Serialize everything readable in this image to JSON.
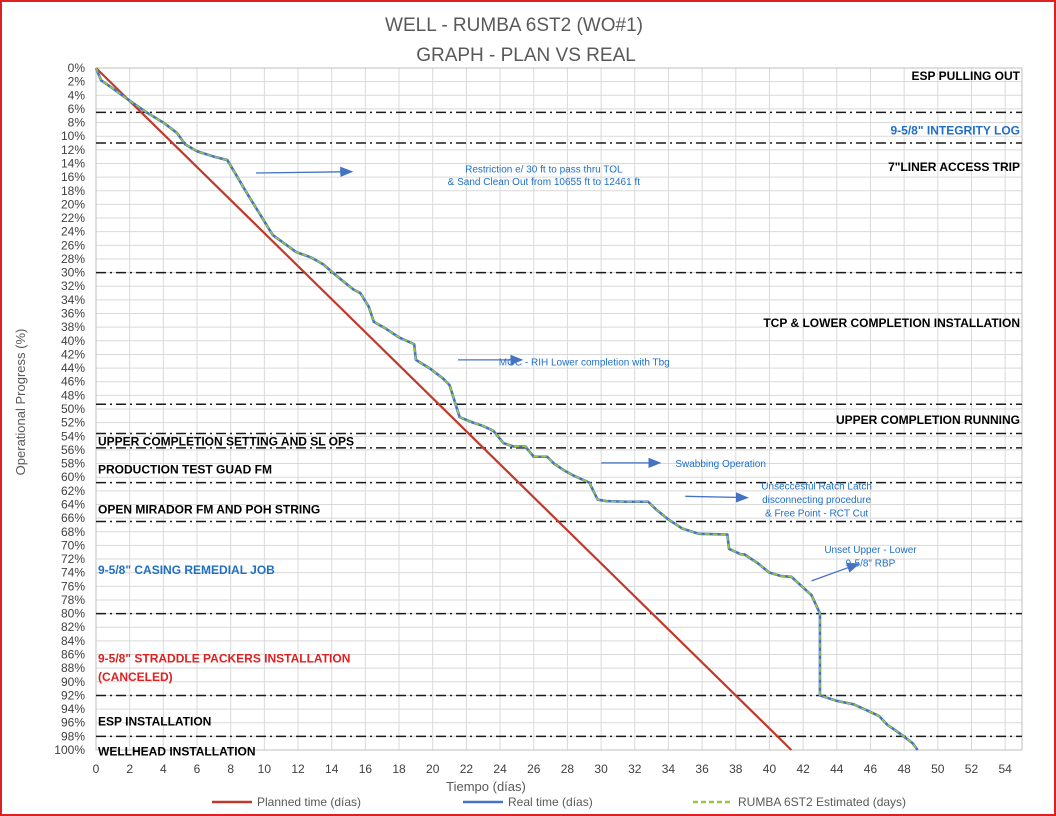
{
  "chart_data": {
    "type": "line",
    "title": [
      "WELL -  RUMBA 6ST2 (WO#1)",
      "GRAPH  - PLAN VS REAL"
    ],
    "xlabel": "Tiempo (días)",
    "ylabel": "Operational Progress (%)",
    "xlim": [
      0,
      55
    ],
    "ylim": [
      0,
      100
    ],
    "y_inverted": true,
    "x_ticks": [
      0,
      2,
      4,
      6,
      8,
      10,
      12,
      14,
      16,
      18,
      20,
      22,
      24,
      26,
      28,
      30,
      32,
      34,
      36,
      38,
      40,
      42,
      44,
      46,
      48,
      50,
      52,
      54
    ],
    "y_ticks": [
      0,
      2,
      4,
      6,
      8,
      10,
      12,
      14,
      16,
      18,
      20,
      22,
      24,
      26,
      28,
      30,
      32,
      34,
      36,
      38,
      40,
      42,
      44,
      46,
      48,
      50,
      52,
      54,
      56,
      58,
      60,
      62,
      64,
      66,
      68,
      70,
      72,
      74,
      76,
      78,
      80,
      82,
      84,
      86,
      88,
      90,
      92,
      94,
      96,
      98,
      100
    ],
    "grid": true,
    "legend_position": "bottom",
    "series": [
      {
        "name": "Planned time (días)",
        "color": "#c0392b",
        "style": "solid",
        "x": [
          0,
          41.3
        ],
        "y": [
          0,
          100
        ]
      },
      {
        "name": "Real time (días)",
        "color": "#4472c4",
        "style": "solid",
        "x": [
          0,
          0.3,
          1.0,
          2.0,
          3.0,
          4.0,
          4.8,
          5.3,
          6.0,
          7.0,
          7.8,
          9.0,
          10.5,
          11.9,
          12.8,
          13.5,
          14.3,
          14.8,
          15.3,
          15.7,
          16.2,
          16.5,
          17.2,
          18.0,
          18.9,
          19.0,
          19.8,
          20.6,
          21.0,
          21.6,
          22.4,
          23.0,
          23.6,
          24.2,
          24.8,
          25.5,
          26.0,
          26.8,
          27.2,
          27.8,
          28.4,
          29.3,
          29.8,
          30.3,
          31.5,
          32.8,
          33.3,
          34.0,
          34.8,
          35.8,
          37.5,
          37.6,
          38.3,
          38.5,
          39.3,
          40.0,
          40.7,
          41.3,
          42.5,
          43.0,
          43.0,
          44.0,
          45.0,
          45.8,
          46.5,
          47.0,
          47.7,
          48.5,
          48.8
        ],
        "y": [
          0,
          1.8,
          3.0,
          4.8,
          6.5,
          8.0,
          9.5,
          11.2,
          12.2,
          13.0,
          13.5,
          18.5,
          24.5,
          27.0,
          27.8,
          28.8,
          30.5,
          31.5,
          32.5,
          33.0,
          35.0,
          37.2,
          38.2,
          39.5,
          40.5,
          42.8,
          44.0,
          45.5,
          46.5,
          51.2,
          52.0,
          52.5,
          53.2,
          55.0,
          55.5,
          55.5,
          57.0,
          57.0,
          58.0,
          59.0,
          59.8,
          60.8,
          63.3,
          63.5,
          63.6,
          63.6,
          64.8,
          66.2,
          67.5,
          68.3,
          68.4,
          70.5,
          71.3,
          71.3,
          72.6,
          74.0,
          74.5,
          74.6,
          77.3,
          80.0,
          92.0,
          92.8,
          93.3,
          94.2,
          95.0,
          96.3,
          97.5,
          99.0,
          100
        ]
      },
      {
        "name": "RUMBA 6ST2 Estimated (days)",
        "color": "#9bc53d",
        "style": "dashed",
        "follows": "Real time (días)"
      }
    ],
    "phase_boundaries": [
      6.5,
      11,
      30,
      49.3,
      53.6,
      55.7,
      60.8,
      66.5,
      80,
      92,
      98
    ],
    "phases": [
      {
        "label": "ESP PULLING OUT",
        "color": "#000000",
        "y": 1.2,
        "align": "right"
      },
      {
        "label": "9-5/8\" INTEGRITY LOG",
        "color": "#1f6fc5",
        "y": 9.2,
        "align": "right"
      },
      {
        "label": "7\"LINER ACCESS TRIP",
        "color": "#000000",
        "y": 14.5,
        "align": "right"
      },
      {
        "label": "TCP & LOWER COMPLETION INSTALLATION",
        "color": "#000000",
        "y": 37.4,
        "align": "right"
      },
      {
        "label": "UPPER COMPLETION RUNNING",
        "color": "#000000",
        "y": 51.6,
        "align": "right"
      },
      {
        "label": "UPPER COMPLETION SETTING AND SL OPS",
        "color": "#000000",
        "y": 54.8,
        "align": "left"
      },
      {
        "label": "PRODUCTION TEST GUAD FM",
        "color": "#000000",
        "y": 58.9,
        "align": "left"
      },
      {
        "label": "OPEN MIRADOR FM AND POH STRING",
        "color": "#000000",
        "y": 64.7,
        "align": "left"
      },
      {
        "label": "9-5/8\" CASING REMEDIAL JOB",
        "color": "#1f6fc5",
        "y": 73.6,
        "align": "left"
      },
      {
        "label": "9-5/8\" STRADDLE PACKERS INSTALLATION",
        "color": "#e02020",
        "y": 86.6,
        "align": "left"
      },
      {
        "label": "(CANCELED)",
        "color": "#e02020",
        "y": 89.3,
        "align": "left"
      },
      {
        "label": "ESP INSTALLATION",
        "color": "#000000",
        "y": 95.8,
        "align": "left"
      },
      {
        "label": "WELLHEAD INSTALLATION",
        "color": "#000000",
        "y": 100.2,
        "align": "left"
      }
    ],
    "annotations": [
      {
        "lines": [
          "Restriction e/ 30 ft to pass thru TOL",
          "& Sand Clean Out from 10655  ft to 12461  ft"
        ],
        "x": 26.6,
        "y": [
          14.7,
          16.6
        ],
        "arrow": {
          "from": [
            9.5,
            15.4
          ],
          "to": [
            15.2,
            15.2
          ]
        }
      },
      {
        "lines": [
          "MOC - RIH Lower completion with Tbg"
        ],
        "x": 29.0,
        "y": [
          43.0
        ],
        "arrow": {
          "from": [
            21.5,
            42.8
          ],
          "to": [
            25.3,
            42.8
          ]
        }
      },
      {
        "lines": [
          "Swabbing Operation"
        ],
        "x": 37.1,
        "y": [
          57.9
        ],
        "arrow": {
          "from": [
            30.0,
            57.9
          ],
          "to": [
            33.5,
            57.9
          ]
        }
      },
      {
        "lines": [
          "Unseccesful Ratch Latch",
          "disconnecting procedure",
          "& Free Point - RCT Cut"
        ],
        "x": 42.8,
        "y": [
          61.2,
          63.2,
          65.2
        ],
        "arrow": {
          "from": [
            35.0,
            62.8
          ],
          "to": [
            38.7,
            63.0
          ]
        }
      },
      {
        "lines": [
          "Unset Upper - Lower",
          "9-5/8\" RBP"
        ],
        "x": 46.0,
        "y": [
          70.5,
          72.5
        ],
        "arrow": {
          "from": [
            42.5,
            75.2
          ],
          "to": [
            45.3,
            72.7
          ]
        }
      }
    ]
  }
}
